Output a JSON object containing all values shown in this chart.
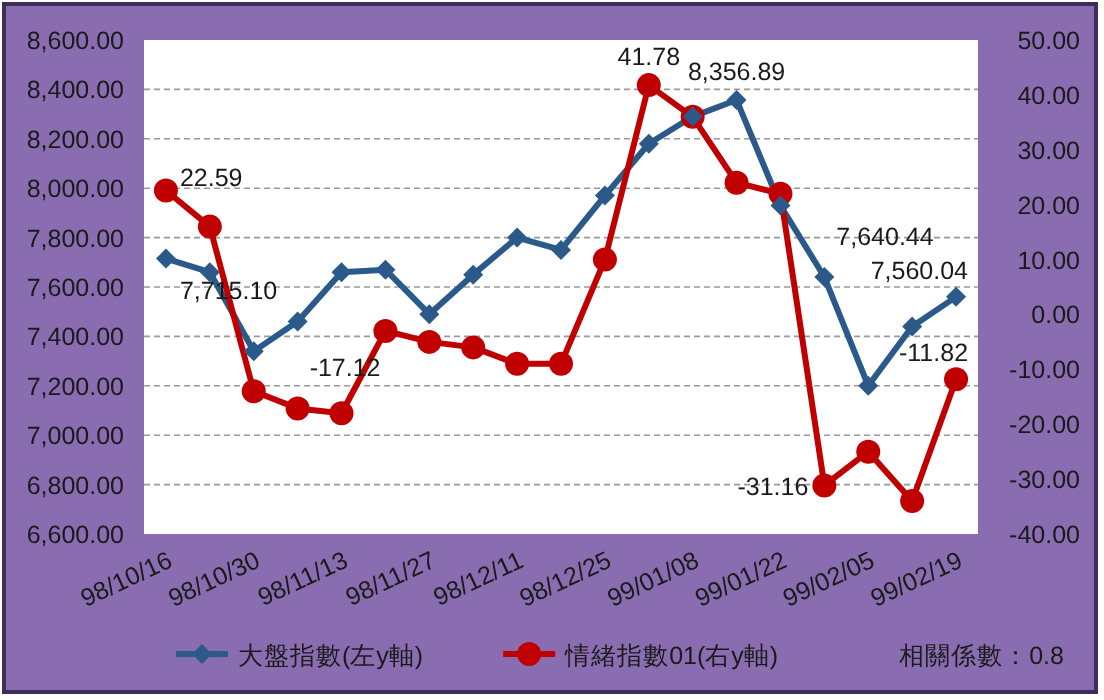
{
  "chart_data": {
    "type": "line",
    "categories": [
      "98/10/16",
      null,
      "98/10/30",
      null,
      "98/11/13",
      null,
      "98/11/27",
      null,
      "98/12/11",
      null,
      "98/12/25",
      null,
      "99/01/08",
      null,
      "99/01/22",
      null,
      "99/02/05",
      null,
      "99/02/19"
    ],
    "series": [
      {
        "name": "大盤指數(左y軸)",
        "color": "#2b5a8a",
        "marker": "diamond",
        "axis": "y",
        "values": [
          7715.1,
          7660,
          7340,
          7460,
          7660,
          7670,
          7490,
          7650,
          7800,
          7750,
          7970,
          8180,
          8290,
          8356.89,
          7930,
          7640.44,
          7200,
          7440,
          7560.04
        ],
        "value_labels": [
          "7,715.10",
          null,
          null,
          null,
          null,
          null,
          null,
          null,
          null,
          null,
          null,
          null,
          null,
          "8,356.89",
          null,
          "7,640.44",
          null,
          null,
          "7,560.04"
        ]
      },
      {
        "name": "情緒指數01(右y軸)",
        "color": "#c00000",
        "marker": "circle",
        "axis": "y2",
        "values": [
          22.59,
          16,
          -14,
          -17.12,
          -18,
          -3,
          -5,
          -6,
          -9,
          -9,
          10,
          41.78,
          36,
          24,
          22,
          -31.16,
          -25,
          -34,
          -11.82
        ],
        "value_labels": [
          "22.59",
          null,
          null,
          "-17.12",
          null,
          null,
          null,
          null,
          null,
          null,
          null,
          "41.78",
          null,
          null,
          null,
          "-31.16",
          null,
          null,
          "-11.82"
        ]
      }
    ],
    "ylim": [
      6600,
      8600
    ],
    "yticks": [
      {
        "value": 6600,
        "label": "6,600.00"
      },
      {
        "value": 6800,
        "label": "6,800.00"
      },
      {
        "value": 7000,
        "label": "7,000.00"
      },
      {
        "value": 7200,
        "label": "7,200.00"
      },
      {
        "value": 7400,
        "label": "7,400.00"
      },
      {
        "value": 7600,
        "label": "7,600.00"
      },
      {
        "value": 7800,
        "label": "7,800.00"
      },
      {
        "value": 8000,
        "label": "8,000.00"
      },
      {
        "value": 8200,
        "label": "8,200.00"
      },
      {
        "value": 8400,
        "label": "8,400.00"
      },
      {
        "value": 8600,
        "label": "8,600.00"
      }
    ],
    "y2lim": [
      -40,
      50
    ],
    "y2ticks": [
      {
        "value": -40,
        "label": "-40.00"
      },
      {
        "value": -30,
        "label": "-30.00"
      },
      {
        "value": -20,
        "label": "-20.00"
      },
      {
        "value": -10,
        "label": "-10.00"
      },
      {
        "value": 0,
        "label": "0.00"
      },
      {
        "value": 10,
        "label": "10.00"
      },
      {
        "value": 20,
        "label": "20.00"
      },
      {
        "value": 30,
        "label": "30.00"
      },
      {
        "value": 40,
        "label": "40.00"
      },
      {
        "value": 50,
        "label": "50.00"
      }
    ],
    "grid": "y",
    "legend": "bottom",
    "annotations": [
      "相關係數：0.8"
    ]
  }
}
